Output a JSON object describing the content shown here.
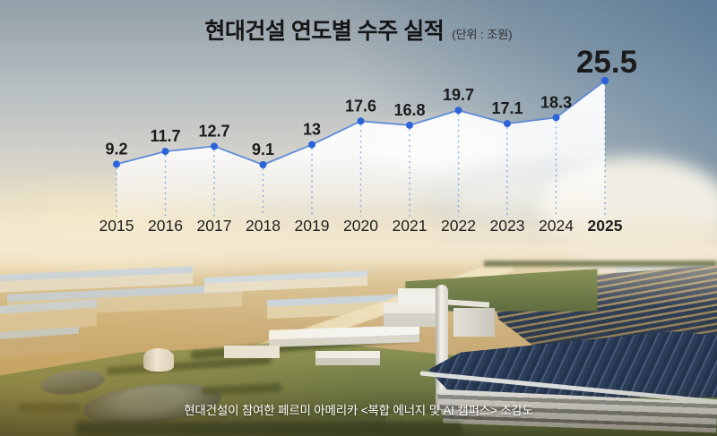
{
  "title": {
    "text": "현대건설 연도별 수주 실적",
    "unit": "(단위 : 조원)"
  },
  "caption": "현대건설이 참여한 페르미 아메리카 <복합 에너지 및 AI 캠퍼스> 조감도",
  "chart_data": {
    "type": "line",
    "title": "현대건설 연도별 수주 실적",
    "unit_label": "(단위 : 조원)",
    "categories": [
      "2015",
      "2016",
      "2017",
      "2018",
      "2019",
      "2020",
      "2021",
      "2022",
      "2023",
      "2024",
      "2025"
    ],
    "values": [
      9.2,
      11.7,
      12.7,
      9.1,
      13,
      17.6,
      16.8,
      19.7,
      17.1,
      18.3,
      25.5
    ],
    "highlight_category": "2025",
    "highlight_index": 10,
    "ylim": [
      0,
      27
    ],
    "grid": false,
    "legend_position": "none",
    "colors": {
      "line": "#5e8ad8",
      "point": "#2c63d8",
      "dotted_line": "#4a85dc",
      "area_fill": "#ffffff",
      "highlight_fill": "#9edcf8",
      "label_text": "#1b1b1b",
      "year_text": "#1f1f1f"
    }
  }
}
